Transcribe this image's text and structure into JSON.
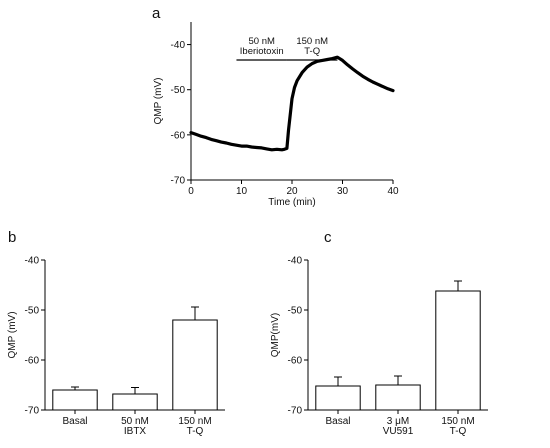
{
  "panels": {
    "a": "a",
    "b": "b",
    "c": "c"
  },
  "chart_data": [
    {
      "panel": "a",
      "type": "line",
      "xlabel": "Time (min)",
      "ylabel": "QMP (mV)",
      "xlim": [
        0,
        40
      ],
      "ylim": [
        -70,
        -35
      ],
      "xticks": [
        0,
        10,
        20,
        30,
        40
      ],
      "yticks": [
        -70,
        -60,
        -50,
        -40
      ],
      "grid": false,
      "annotations": [
        {
          "lines": [
            "50 nM",
            "Iberiotoxin"
          ],
          "x_start": 9,
          "x_end": 19
        },
        {
          "lines": [
            "150 nM",
            "T-Q"
          ],
          "x_start": 19,
          "x_end": 29
        }
      ],
      "series": [
        {
          "x": [
            0,
            1,
            2,
            3,
            4,
            5,
            6,
            7,
            8,
            9,
            10,
            11,
            12,
            13,
            14,
            15,
            16,
            17,
            18,
            18.5,
            19,
            19.3,
            19.7,
            20,
            20.5,
            21,
            22,
            23,
            24,
            25,
            26,
            27,
            28,
            29,
            30,
            31,
            32,
            33,
            34,
            35,
            36,
            37,
            38,
            39,
            40
          ],
          "values": [
            -59.5,
            -59.9,
            -60.3,
            -60.6,
            -61.0,
            -61.3,
            -61.6,
            -61.8,
            -62.1,
            -62.3,
            -62.5,
            -62.5,
            -62.7,
            -62.8,
            -62.9,
            -63.1,
            -63.3,
            -63.2,
            -63.3,
            -63.2,
            -63.0,
            -59.0,
            -55.0,
            -52.0,
            -49.5,
            -48.0,
            -46.2,
            -45.0,
            -44.2,
            -43.7,
            -43.5,
            -43.3,
            -43.1,
            -42.8,
            -43.5,
            -44.5,
            -45.4,
            -46.2,
            -47.0,
            -47.7,
            -48.3,
            -48.8,
            -49.3,
            -49.8,
            -50.2
          ]
        }
      ]
    },
    {
      "panel": "b",
      "type": "bar",
      "ylabel": "QMP (mV)",
      "ylim": [
        -70,
        -40
      ],
      "yticks": [
        -70,
        -60,
        -50,
        -40
      ],
      "categories": [
        [
          "Basal"
        ],
        [
          "50 nM",
          "IBTX"
        ],
        [
          "150 nM",
          "T-Q"
        ]
      ],
      "values": [
        -66.0,
        -66.8,
        -52.0
      ],
      "errors": [
        0.6,
        1.3,
        2.6
      ],
      "grid": false
    },
    {
      "panel": "c",
      "type": "bar",
      "ylabel": "QMP(mV)",
      "ylim": [
        -70,
        -40
      ],
      "yticks": [
        -70,
        -60,
        -50,
        -40
      ],
      "categories": [
        [
          "Basal"
        ],
        [
          "3 μM",
          "VU591"
        ],
        [
          "150 nM",
          "T-Q"
        ]
      ],
      "values": [
        -65.2,
        -65.0,
        -46.2
      ],
      "errors": [
        1.8,
        1.8,
        2.0
      ],
      "grid": false
    }
  ]
}
